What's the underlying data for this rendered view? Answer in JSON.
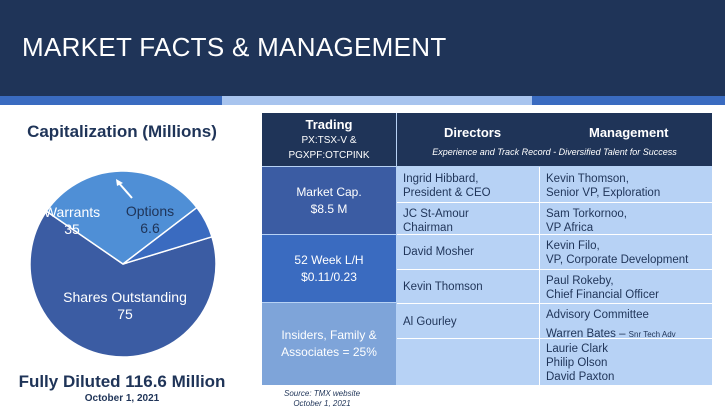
{
  "header": {
    "title": "MARKET FACTS & MANAGEMENT"
  },
  "capitalization": {
    "title": "Capitalization (Millions)",
    "segments": [
      {
        "name": "Shares Outstanding",
        "value": "75",
        "amount": 75,
        "color": "#3b5ca3"
      },
      {
        "name": "Warrants",
        "value": "35",
        "amount": 35,
        "color": "#4f8fd6"
      },
      {
        "name": "Options",
        "value": "6.6",
        "amount": 6.6,
        "color": "#3a6bc0"
      }
    ],
    "fully_diluted": "Fully Diluted 116.6 Million",
    "date": "October 1, 2021"
  },
  "table": {
    "trading": {
      "title": "Trading",
      "line1": "PX:TSX-V &",
      "line2": "PGXPF:OTCPINK"
    },
    "market_cap": {
      "label": "Market Cap.",
      "value": "$8.5 M"
    },
    "week52": {
      "label": "52 Week L/H",
      "value": "$0.11/0.23"
    },
    "insiders": {
      "label": "Insiders, Family &",
      "value": "Associates = 25%"
    },
    "directors_header": "Directors",
    "management_header": "Management",
    "subheader": "Experience and Track Record - Diversified Talent for Success",
    "directors": [
      {
        "line1": "Ingrid Hibbard,",
        "line2": "President & CEO"
      },
      {
        "line1": "JC St-Amour",
        "line2": "Chairman"
      },
      {
        "line1": "David Mosher",
        "line2": ""
      },
      {
        "line1": "Kevin Thomson",
        "line2": ""
      },
      {
        "line1": "Al Gourley",
        "line2": ""
      }
    ],
    "management": [
      {
        "line1": "Kevin Thomson,",
        "line2": "Senior VP, Exploration"
      },
      {
        "line1": "Sam Torkornoo,",
        "line2": "VP Africa"
      },
      {
        "line1": "Kevin Filo,",
        "line2": "VP, Corporate Development"
      },
      {
        "line1": "Paul Rokeby,",
        "line2": "Chief Financial Officer"
      }
    ],
    "advisory": {
      "title": "Advisory Committee",
      "warren": "Warren Bates –",
      "warren_role": "Snr Tech Adv",
      "members": [
        "Laurie Clark",
        "Philip Olson",
        "David Paxton"
      ]
    }
  },
  "source": {
    "line1": "Source: TMX website",
    "line2": "October 1, 2021"
  }
}
